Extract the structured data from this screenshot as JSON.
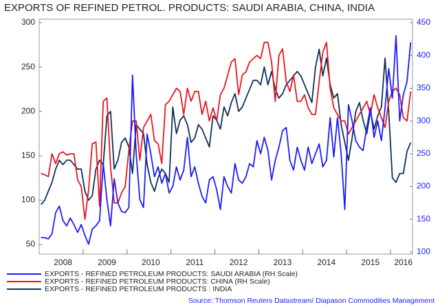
{
  "chart_data": {
    "type": "line",
    "title": "EXPORTS OF REFINED PETROL. PRODUCTS: SAUDI ARABIA, CHINA, INDIA",
    "source": "Source: Thomson Reuters Datastream/ Diapason Commodities Management",
    "categories": [
      null,
      null,
      null,
      null,
      null,
      null,
      "2008",
      null,
      null,
      null,
      null,
      null,
      null,
      null,
      null,
      null,
      null,
      null,
      "2009",
      null,
      null,
      null,
      null,
      null,
      null,
      null,
      null,
      null,
      null,
      null,
      "2010",
      null,
      null,
      null,
      null,
      null,
      null,
      null,
      null,
      null,
      null,
      null,
      "2011",
      null,
      null,
      null,
      null,
      null,
      null,
      null,
      null,
      null,
      null,
      null,
      "2012",
      null,
      null,
      null,
      null,
      null,
      null,
      null,
      null,
      null,
      null,
      null,
      "2013",
      null,
      null,
      null,
      null,
      null,
      null,
      null,
      null,
      null,
      null,
      null,
      "2014",
      null,
      null,
      null,
      null,
      null,
      null,
      null,
      null,
      null,
      null,
      null,
      "2015",
      null,
      null,
      null,
      null,
      null,
      null,
      null,
      null,
      "2016",
      null,
      null
    ],
    "ylim": [
      41.5,
      300
    ],
    "yticks": [
      50,
      100,
      150,
      200,
      250,
      300
    ],
    "y2lim": [
      100,
      450
    ],
    "y2ticks": [
      100,
      150,
      200,
      250,
      300,
      350,
      400,
      450
    ],
    "series": [
      {
        "name": "EXPORTS - REFINED PETROLEUM PRODUCTS: SAUDI ARABIA (RH Scale)",
        "color": "#1a1aff",
        "axis": "y2",
        "values": [
          122,
          122,
          120,
          128,
          160,
          170,
          148,
          140,
          152,
          142,
          130,
          142,
          125,
          112,
          135,
          140,
          148,
          235,
          180,
          140,
          212,
          175,
          162,
          160,
          168,
          370,
          250,
          180,
          168,
          280,
          250,
          215,
          230,
          205,
          220,
          190,
          200,
          230,
          210,
          225,
          275,
          215,
          230,
          205,
          185,
          175,
          210,
          215,
          195,
          165,
          215,
          200,
          190,
          235,
          210,
          205,
          215,
          235,
          230,
          270,
          250,
          275,
          255,
          210,
          240,
          260,
          285,
          290,
          240,
          225,
          260,
          240,
          225,
          260,
          235,
          250,
          265,
          230,
          240,
          305,
          245,
          305,
          250,
          165,
          325,
          300,
          270,
          260,
          255,
          290,
          320,
          275,
          300,
          270,
          320,
          380,
          335,
          430,
          300,
          340,
          360,
          420
        ]
      },
      {
        "name": "EXPORTS - REFINED PETROLEUM PRODUCTS: CHINA (RH Scale)",
        "color": "#e8141b",
        "axis": "y2",
        "values": [
          220,
          218,
          215,
          250,
          235,
          250,
          253,
          248,
          250,
          250,
          210,
          200,
          150,
          195,
          265,
          268,
          170,
          330,
          335,
          230,
          175,
          175,
          190,
          200,
          255,
          300,
          300,
          240,
          290,
          300,
          310,
          270,
          265,
          235,
          325,
          330,
          340,
          350,
          345,
          310,
          350,
          330,
          345,
          345,
          310,
          330,
          300,
          320,
          300,
          340,
          350,
          370,
          390,
          395,
          340,
          370,
          375,
          390,
          395,
          400,
          395,
          420,
          420,
          390,
          330,
          400,
          410,
          360,
          345,
          370,
          330,
          330,
          340,
          320,
          310,
          310,
          360,
          405,
          420,
          350,
          320,
          310,
          300,
          300,
          280,
          290,
          300,
          310,
          320,
          330,
          310,
          340,
          320,
          305,
          290,
          330,
          345,
          350,
          340,
          305,
          300,
          345
        ]
      },
      {
        "name": "EXPORTS - REFINED PETROLEUM PRODUCTS : INDIA",
        "color": "#0d2f57",
        "values": [
          95,
          100,
          110,
          120,
          135,
          145,
          140,
          145,
          145,
          140,
          135,
          135,
          110,
          100,
          105,
          135,
          145,
          140,
          195,
          200,
          135,
          145,
          165,
          170,
          160,
          130,
          185,
          180,
          175,
          140,
          120,
          110,
          125,
          135,
          130,
          120,
          205,
          175,
          190,
          195,
          185,
          165,
          170,
          185,
          180,
          170,
          160,
          195,
          190,
          180,
          205,
          195,
          210,
          220,
          200,
          205,
          215,
          225,
          235,
          235,
          230,
          250,
          230,
          245,
          225,
          215,
          220,
          230,
          235,
          240,
          245,
          240,
          230,
          220,
          210,
          250,
          270,
          240,
          260,
          230,
          215,
          220,
          185,
          165,
          145,
          170,
          200,
          210,
          190,
          175,
          200,
          180,
          195,
          205,
          260,
          200,
          125,
          120,
          130,
          130,
          155,
          165
        ]
      }
    ]
  }
}
